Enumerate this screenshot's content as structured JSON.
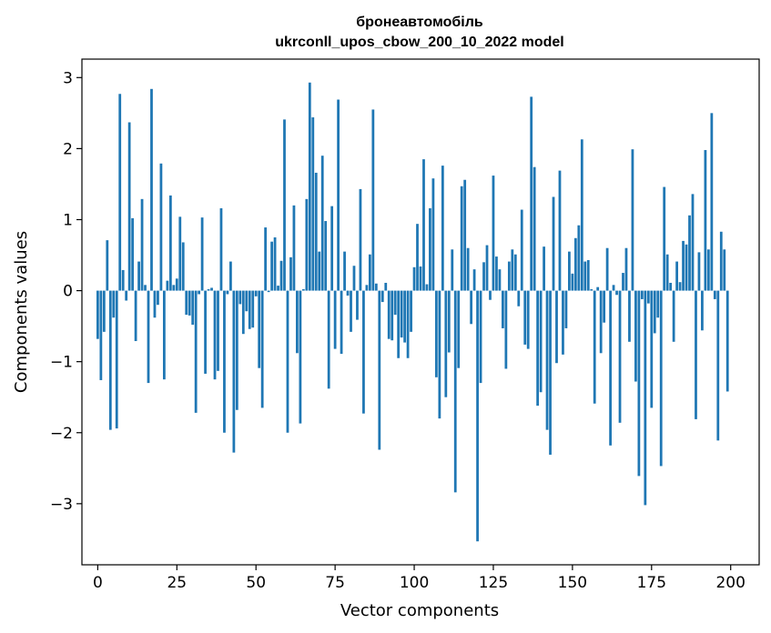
{
  "chart_data": {
    "type": "bar",
    "title": "бронеавтомобіль",
    "subtitle": "ukrconll_upos_cbow_200_10_2022 model",
    "xlabel": "Vector components",
    "ylabel": "Components values",
    "xlim": [
      -5,
      209
    ],
    "ylim": [
      -3.86,
      3.26
    ],
    "xticks": [
      0,
      25,
      50,
      75,
      100,
      125,
      150,
      175,
      200
    ],
    "xtick_labels": [
      "0",
      "25",
      "50",
      "75",
      "100",
      "125",
      "150",
      "175",
      "200"
    ],
    "yticks": [
      -3,
      -2,
      -1,
      0,
      1,
      2,
      3
    ],
    "ytick_labels": [
      "−3",
      "−2",
      "−1",
      "0",
      "1",
      "2",
      "3"
    ],
    "grid": false,
    "bar_color": "#1f77b4",
    "x": [
      0,
      1,
      2,
      3,
      4,
      5,
      6,
      7,
      8,
      9,
      10,
      11,
      12,
      13,
      14,
      15,
      16,
      17,
      18,
      19,
      20,
      21,
      22,
      23,
      24,
      25,
      26,
      27,
      28,
      29,
      30,
      31,
      32,
      33,
      34,
      35,
      36,
      37,
      38,
      39,
      40,
      41,
      42,
      43,
      44,
      45,
      46,
      47,
      48,
      49,
      50,
      51,
      52,
      53,
      54,
      55,
      56,
      57,
      58,
      59,
      60,
      61,
      62,
      63,
      64,
      65,
      66,
      67,
      68,
      69,
      70,
      71,
      72,
      73,
      74,
      75,
      76,
      77,
      78,
      79,
      80,
      81,
      82,
      83,
      84,
      85,
      86,
      87,
      88,
      89,
      90,
      91,
      92,
      93,
      94,
      95,
      96,
      97,
      98,
      99,
      100,
      101,
      102,
      103,
      104,
      105,
      106,
      107,
      108,
      109,
      110,
      111,
      112,
      113,
      114,
      115,
      116,
      117,
      118,
      119,
      120,
      121,
      122,
      123,
      124,
      125,
      126,
      127,
      128,
      129,
      130,
      131,
      132,
      133,
      134,
      135,
      136,
      137,
      138,
      139,
      140,
      141,
      142,
      143,
      144,
      145,
      146,
      147,
      148,
      149,
      150,
      151,
      152,
      153,
      154,
      155,
      156,
      157,
      158,
      159,
      160,
      161,
      162,
      163,
      164,
      165,
      166,
      167,
      168,
      169,
      170,
      171,
      172,
      173,
      174,
      175,
      176,
      177,
      178,
      179,
      180,
      181,
      182,
      183,
      184,
      185,
      186,
      187,
      188,
      189,
      190,
      191,
      192,
      193,
      194,
      195,
      196,
      197,
      198,
      199
    ],
    "values": [
      -0.68,
      -1.26,
      -0.58,
      0.71,
      -1.96,
      -0.38,
      -1.94,
      2.77,
      0.29,
      -0.14,
      2.37,
      1.02,
      -0.71,
      0.41,
      1.29,
      0.08,
      -1.3,
      2.84,
      -0.38,
      -0.2,
      1.79,
      -1.25,
      0.14,
      1.34,
      0.08,
      0.17,
      1.04,
      0.68,
      -0.34,
      -0.35,
      -0.48,
      -1.72,
      -0.05,
      1.03,
      -1.17,
      0.02,
      0.04,
      -1.25,
      -1.13,
      1.16,
      -2.0,
      -0.05,
      0.41,
      -2.28,
      -1.68,
      -0.19,
      -0.61,
      -0.29,
      -0.54,
      -0.52,
      -0.08,
      -1.09,
      -1.65,
      0.89,
      -0.02,
      0.69,
      0.75,
      0.07,
      0.42,
      2.41,
      -2.0,
      0.47,
      1.2,
      -0.88,
      -1.87,
      0.02,
      1.29,
      2.93,
      2.44,
      1.66,
      0.55,
      1.9,
      0.98,
      -1.38,
      1.19,
      -0.82,
      2.69,
      -0.89,
      0.55,
      -0.07,
      -0.58,
      0.35,
      -0.41,
      1.43,
      -1.73,
      0.08,
      0.51,
      2.55,
      0.1,
      -2.24,
      -0.16,
      0.11,
      -0.68,
      -0.7,
      -0.34,
      -0.95,
      -0.66,
      -0.73,
      -0.95,
      -0.58,
      0.33,
      0.94,
      0.34,
      1.85,
      0.09,
      1.16,
      1.58,
      -1.22,
      -1.8,
      1.76,
      -1.5,
      -0.87,
      0.58,
      -2.84,
      -1.09,
      1.47,
      1.56,
      0.6,
      -0.47,
      0.3,
      -3.53,
      -1.3,
      0.4,
      0.64,
      -0.13,
      1.62,
      0.48,
      0.3,
      -0.53,
      -1.1,
      0.41,
      0.58,
      0.51,
      -0.22,
      1.14,
      -0.76,
      -0.82,
      2.73,
      1.74,
      -1.62,
      -1.43,
      0.62,
      -1.96,
      -2.31,
      1.32,
      -1.02,
      1.69,
      -0.9,
      -0.53,
      0.55,
      0.24,
      0.74,
      0.92,
      2.13,
      0.41,
      0.43,
      0.02,
      -1.59,
      0.05,
      -0.88,
      -0.45,
      0.6,
      -2.18,
      0.08,
      -0.06,
      -1.86,
      0.25,
      0.6,
      -0.72,
      1.99,
      -1.28,
      -2.61,
      -0.12,
      -3.02,
      -0.18,
      -1.65,
      -0.6,
      -0.38,
      -2.47,
      1.46,
      0.51,
      0.11,
      -0.72,
      0.41,
      0.12,
      0.7,
      0.65,
      1.06,
      1.36,
      -1.81,
      0.54,
      -0.56,
      1.98,
      0.58,
      2.5,
      -0.12,
      -2.11,
      0.83,
      0.58,
      -1.42
    ]
  }
}
